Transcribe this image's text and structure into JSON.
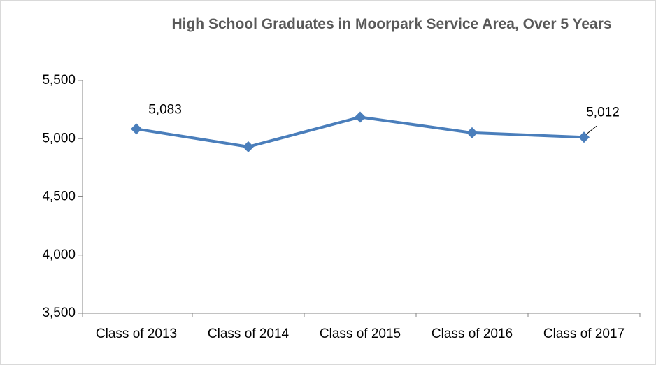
{
  "chart_data": {
    "type": "line",
    "title": "High School Graduates in Moorpark Service Area, Over 5 Years",
    "categories": [
      "Class of 2013",
      "Class of 2014",
      "Class of 2015",
      "Class of 2016",
      "Class of 2017"
    ],
    "series": [
      {
        "name": "High School Graduates",
        "color": "#4a7ebb",
        "values": [
          5083,
          4930,
          5185,
          5050,
          5012
        ],
        "value_labels": [
          "5,083",
          null,
          null,
          null,
          "5,012"
        ]
      }
    ],
    "ylim": [
      3500,
      5500
    ],
    "yticks": [
      {
        "value": 3500,
        "label": "3,500"
      },
      {
        "value": 4000,
        "label": "4,000"
      },
      {
        "value": 4500,
        "label": "4,500"
      },
      {
        "value": 5000,
        "label": "5,000"
      },
      {
        "value": 5500,
        "label": "5,500"
      }
    ],
    "grid": false,
    "legend": false
  }
}
